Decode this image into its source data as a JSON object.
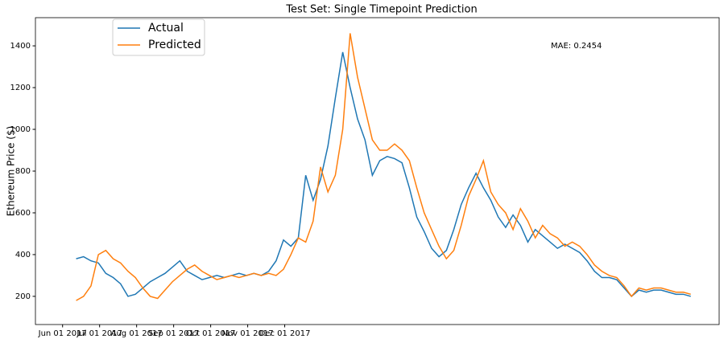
{
  "chart_data": {
    "type": "line",
    "title": "Test Set: Single Timepoint Prediction",
    "y_label": "Ethereum Price ($)",
    "annotation": "MAE: 0.2454",
    "x": [
      11,
      17,
      23,
      29,
      35,
      41,
      47,
      53,
      59,
      65,
      71,
      77,
      83,
      89,
      95,
      101,
      107,
      113,
      119,
      125,
      131,
      137,
      143,
      149,
      155,
      161,
      167,
      173,
      179,
      185,
      191,
      197,
      203,
      209,
      215,
      221,
      227,
      233,
      239,
      245,
      251,
      257,
      263,
      269,
      275,
      281,
      287,
      293,
      299,
      305,
      311,
      317,
      323,
      329,
      335,
      341,
      347,
      353,
      359,
      365,
      371,
      377,
      383,
      389,
      395,
      401,
      407,
      413,
      419,
      425,
      431,
      437,
      443,
      449,
      455,
      461,
      467,
      473,
      479,
      485,
      491,
      497,
      503,
      509
    ],
    "series": [
      {
        "name": "Actual",
        "color": "#1f77b4",
        "values": [
          380,
          390,
          370,
          360,
          310,
          290,
          260,
          200,
          210,
          240,
          270,
          290,
          310,
          340,
          370,
          320,
          300,
          280,
          290,
          300,
          290,
          300,
          310,
          300,
          310,
          300,
          320,
          370,
          470,
          440,
          480,
          780,
          660,
          760,
          920,
          1150,
          1370,
          1200,
          1050,
          950,
          780,
          850,
          870,
          860,
          840,
          720,
          580,
          510,
          430,
          390,
          420,
          520,
          640,
          720,
          790,
          720,
          660,
          580,
          530,
          590,
          540,
          460,
          520,
          490,
          460,
          430,
          450,
          430,
          410,
          370,
          320,
          290,
          290,
          280,
          240,
          200,
          230,
          220,
          230,
          230,
          220,
          210,
          210,
          200
        ]
      },
      {
        "name": "Predicted",
        "color": "#ff7f0e",
        "values": [
          180,
          200,
          250,
          400,
          420,
          380,
          360,
          320,
          290,
          240,
          200,
          190,
          230,
          270,
          300,
          330,
          350,
          320,
          300,
          280,
          290,
          300,
          290,
          300,
          310,
          300,
          310,
          300,
          330,
          400,
          480,
          460,
          560,
          820,
          700,
          780,
          1000,
          1460,
          1250,
          1100,
          950,
          900,
          900,
          930,
          900,
          850,
          720,
          600,
          520,
          440,
          380,
          420,
          540,
          680,
          760,
          850,
          700,
          640,
          600,
          520,
          620,
          560,
          480,
          540,
          500,
          480,
          440,
          460,
          440,
          400,
          350,
          320,
          300,
          290,
          250,
          200,
          240,
          230,
          240,
          240,
          230,
          220,
          220,
          210
        ]
      }
    ],
    "xlim": [
      -22,
      532
    ],
    "ylim": [
      65,
      1535
    ],
    "xticks": [
      {
        "value": 0,
        "label": "Jun 01 2017"
      },
      {
        "value": 30,
        "label": "Jul 01 2017"
      },
      {
        "value": 60,
        "label": "Aug 01 2017"
      },
      {
        "value": 90,
        "label": "Sep 01 2017"
      },
      {
        "value": 120,
        "label": "Oct 01 2017"
      },
      {
        "value": 150,
        "label": "Nov 01 2017"
      },
      {
        "value": 180,
        "label": "Dec 01 2017"
      }
    ],
    "yticks": [
      200,
      400,
      600,
      800,
      1000,
      1200,
      1400
    ],
    "legend": "upper left"
  }
}
